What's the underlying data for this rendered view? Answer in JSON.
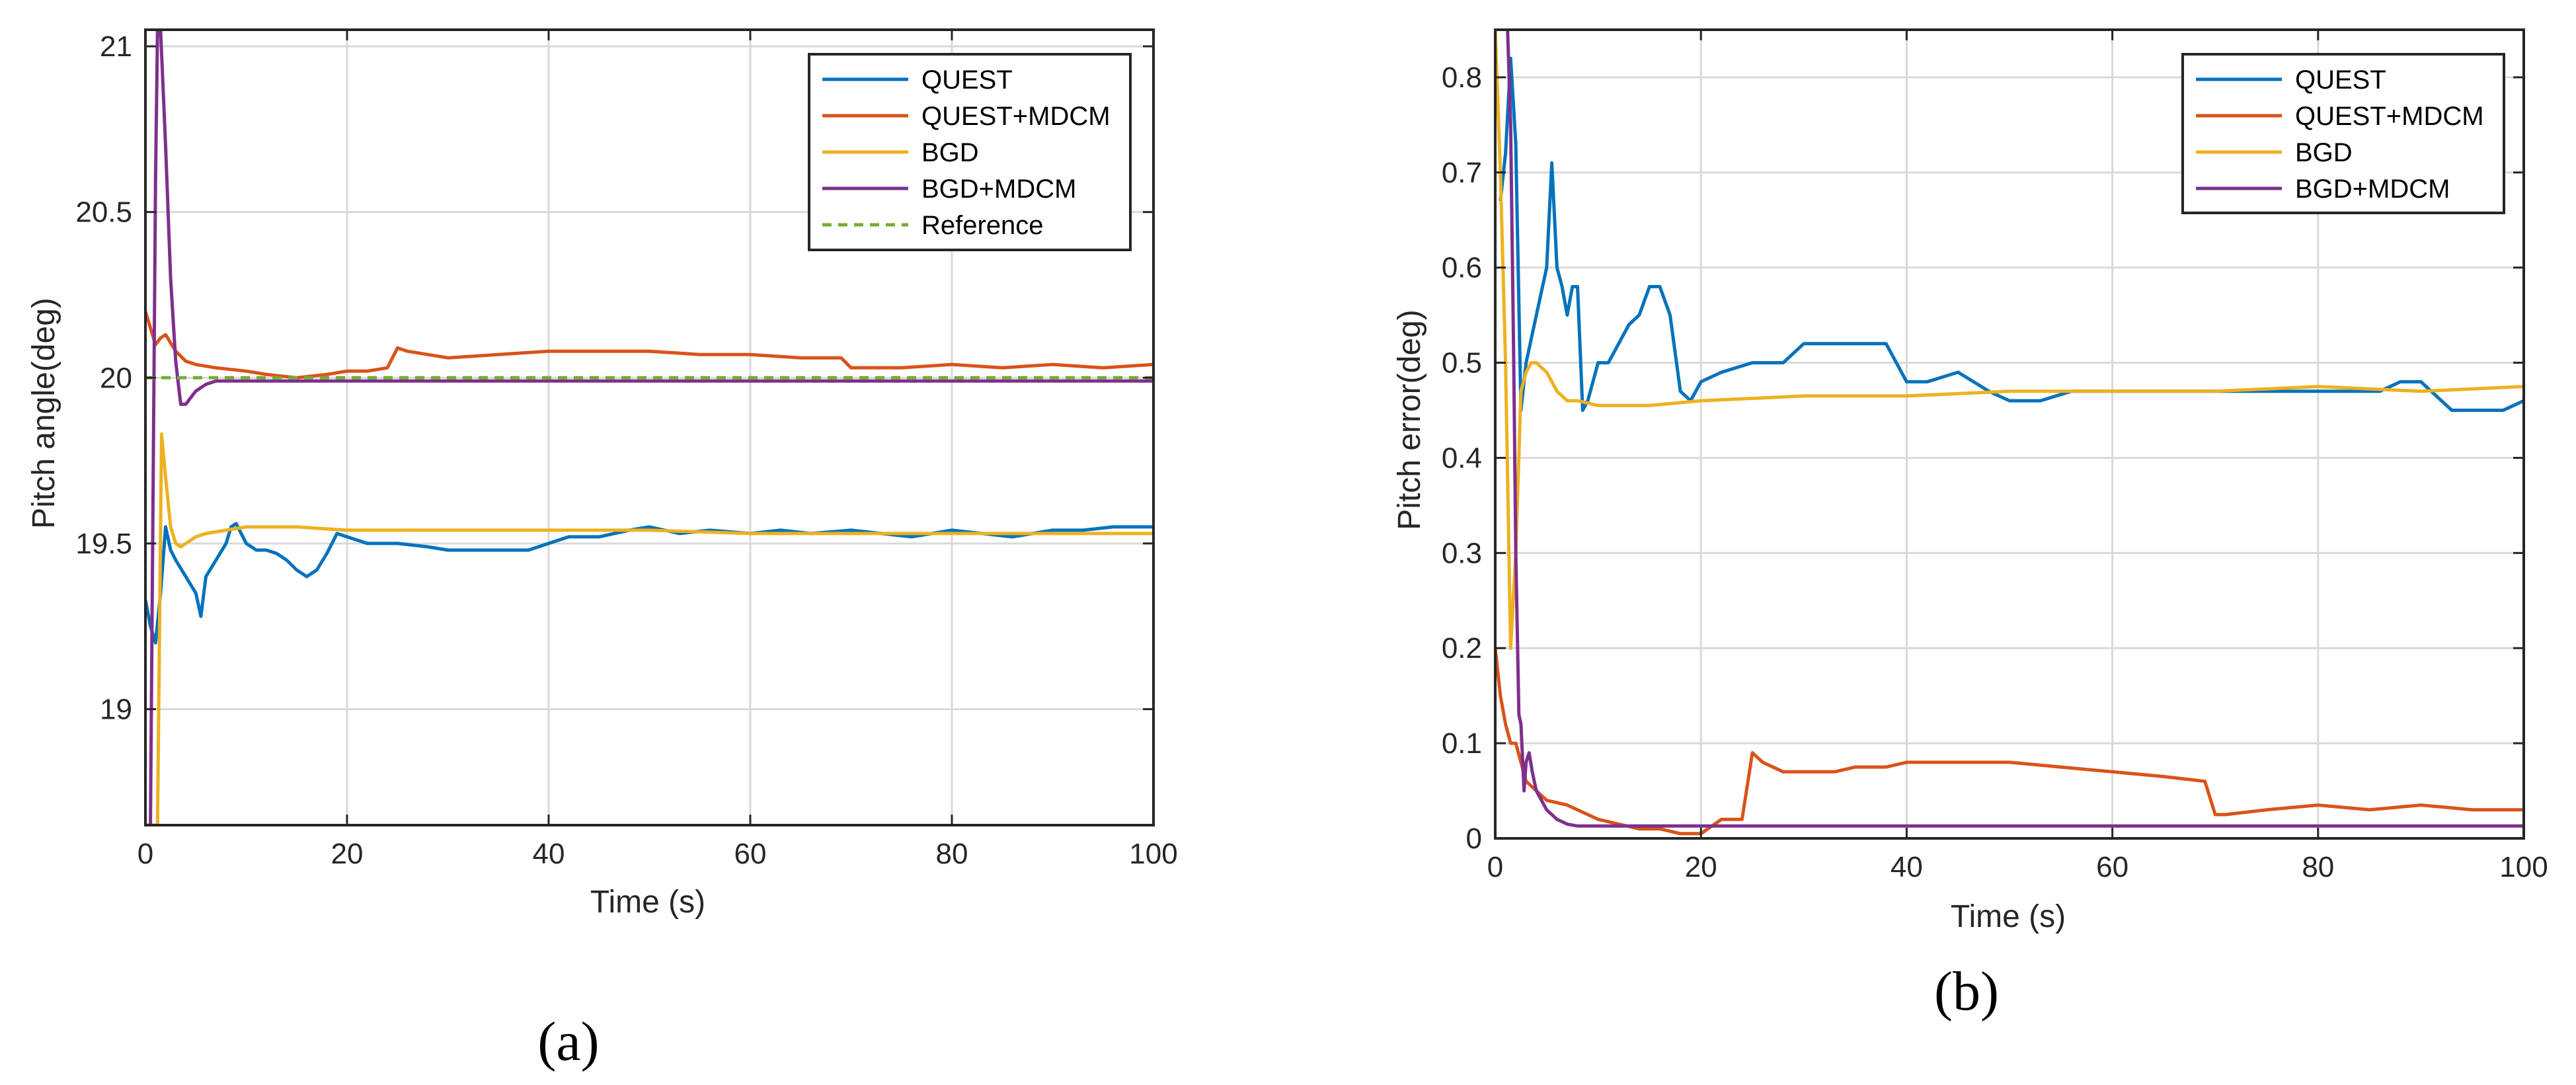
{
  "chart_data": [
    {
      "type": "line",
      "panel_label": "(a)",
      "xlabel": "Time (s)",
      "ylabel": "Pitch angle(deg)",
      "xlim": [
        0,
        100
      ],
      "ylim": [
        18.65,
        21.05
      ],
      "xticks": [
        0,
        20,
        40,
        60,
        80,
        100
      ],
      "xtick_labels": [
        "0",
        "20",
        "40",
        "60",
        "80",
        "100"
      ],
      "yticks": [
        19,
        19.5,
        20,
        20.5,
        21
      ],
      "ytick_labels": [
        "19",
        "19.5",
        "20",
        "20.5",
        "21"
      ],
      "grid": true,
      "legend_position": "top-right",
      "series": [
        {
          "name": "QUEST",
          "color": "#0072BD",
          "dash": "solid",
          "x": [
            0,
            0.5,
            1,
            1.5,
            2,
            2.5,
            3,
            4,
            5,
            5.5,
            6,
            7,
            8,
            8.5,
            9,
            10,
            11,
            12,
            13,
            14,
            15,
            16,
            17,
            18,
            19,
            20,
            22,
            25,
            28,
            30,
            33,
            36,
            38,
            40,
            42,
            45,
            48,
            50,
            53,
            56,
            60,
            63,
            66,
            70,
            73,
            76,
            80,
            83,
            86,
            88,
            90,
            93,
            96,
            98,
            100
          ],
          "y": [
            19.33,
            19.25,
            19.2,
            19.35,
            19.55,
            19.48,
            19.45,
            19.4,
            19.35,
            19.28,
            19.4,
            19.45,
            19.5,
            19.55,
            19.56,
            19.5,
            19.48,
            19.48,
            19.47,
            19.45,
            19.42,
            19.4,
            19.42,
            19.47,
            19.53,
            19.52,
            19.5,
            19.5,
            19.49,
            19.48,
            19.48,
            19.48,
            19.48,
            19.5,
            19.52,
            19.52,
            19.54,
            19.55,
            19.53,
            19.54,
            19.53,
            19.54,
            19.53,
            19.54,
            19.53,
            19.52,
            19.54,
            19.53,
            19.52,
            19.53,
            19.54,
            19.54,
            19.55,
            19.55,
            19.55
          ]
        },
        {
          "name": "QUEST+MDCM",
          "color": "#D95319",
          "dash": "solid",
          "x": [
            0,
            0.5,
            1,
            1.5,
            2,
            3,
            4,
            5,
            7,
            10,
            12,
            15,
            18,
            20,
            22,
            24,
            25,
            26,
            28,
            30,
            35,
            40,
            45,
            50,
            55,
            60,
            65,
            69,
            70,
            71,
            75,
            80,
            85,
            90,
            95,
            100
          ],
          "y": [
            20.2,
            20.15,
            20.1,
            20.12,
            20.13,
            20.08,
            20.05,
            20.04,
            20.03,
            20.02,
            20.01,
            20.0,
            20.01,
            20.02,
            20.02,
            20.03,
            20.09,
            20.08,
            20.07,
            20.06,
            20.07,
            20.08,
            20.08,
            20.08,
            20.07,
            20.07,
            20.06,
            20.06,
            20.03,
            20.03,
            20.03,
            20.04,
            20.03,
            20.04,
            20.03,
            20.04
          ]
        },
        {
          "name": "BGD",
          "color": "#EDB120",
          "dash": "solid",
          "x": [
            0,
            0.8,
            1.2,
            1.6,
            2,
            2.5,
            3,
            3.5,
            4,
            5,
            6,
            8,
            10,
            15,
            20,
            30,
            40,
            50,
            60,
            70,
            80,
            90,
            100
          ],
          "y": [
            18.65,
            18.65,
            18.65,
            19.83,
            19.7,
            19.55,
            19.5,
            19.49,
            19.5,
            19.52,
            19.53,
            19.54,
            19.55,
            19.55,
            19.54,
            19.54,
            19.54,
            19.54,
            19.53,
            19.53,
            19.53,
            19.53,
            19.53
          ]
        },
        {
          "name": "BGD+MDCM",
          "color": "#7E2F8E",
          "dash": "solid",
          "x": [
            0.5,
            1.0,
            1.2,
            1.5,
            2,
            2.5,
            3,
            3.5,
            4,
            4.5,
            5,
            6,
            7,
            8,
            10,
            20,
            40,
            60,
            80,
            100
          ],
          "y": [
            18.65,
            20.6,
            21.05,
            21.05,
            20.7,
            20.3,
            20.05,
            19.92,
            19.92,
            19.94,
            19.96,
            19.98,
            19.99,
            19.99,
            19.99,
            19.99,
            19.99,
            19.99,
            19.99,
            19.99
          ]
        },
        {
          "name": "Reference",
          "color": "#77AC30",
          "dash": "dashed",
          "x": [
            0,
            100
          ],
          "y": [
            20.0,
            20.0
          ]
        }
      ]
    },
    {
      "type": "line",
      "panel_label": "(b)",
      "xlabel": "Time (s)",
      "ylabel": "Pitch error(deg)",
      "xlim": [
        0,
        100
      ],
      "ylim": [
        0,
        0.85
      ],
      "xticks": [
        0,
        20,
        40,
        60,
        80,
        100
      ],
      "xtick_labels": [
        "0",
        "20",
        "40",
        "60",
        "80",
        "100"
      ],
      "yticks": [
        0,
        0.1,
        0.2,
        0.3,
        0.4,
        0.5,
        0.6,
        0.7,
        0.8
      ],
      "ytick_labels": [
        "0",
        "0.1",
        "0.2",
        "0.3",
        "0.4",
        "0.5",
        "0.6",
        "0.7",
        "0.8"
      ],
      "grid": true,
      "legend_position": "top-right",
      "series": [
        {
          "name": "QUEST",
          "color": "#0072BD",
          "dash": "solid",
          "x": [
            0.5,
            1,
            1.5,
            2,
            2.5,
            3,
            4,
            5,
            5.5,
            6,
            6.5,
            7,
            7.5,
            8,
            8.5,
            9,
            10,
            11,
            12,
            13,
            14,
            15,
            16,
            17,
            18,
            19,
            20,
            22,
            25,
            28,
            30,
            33,
            35,
            37,
            38,
            40,
            42,
            45,
            48,
            50,
            53,
            56,
            60,
            63,
            66,
            70,
            73,
            76,
            80,
            83,
            86,
            88,
            90,
            93,
            96,
            98,
            100
          ],
          "y": [
            0.67,
            0.72,
            0.82,
            0.73,
            0.45,
            0.5,
            0.55,
            0.6,
            0.71,
            0.6,
            0.58,
            0.55,
            0.58,
            0.58,
            0.45,
            0.46,
            0.5,
            0.5,
            0.52,
            0.54,
            0.55,
            0.58,
            0.58,
            0.55,
            0.47,
            0.46,
            0.48,
            0.49,
            0.5,
            0.5,
            0.52,
            0.52,
            0.52,
            0.52,
            0.52,
            0.48,
            0.48,
            0.49,
            0.47,
            0.46,
            0.46,
            0.47,
            0.47,
            0.47,
            0.47,
            0.47,
            0.47,
            0.47,
            0.47,
            0.47,
            0.47,
            0.48,
            0.48,
            0.45,
            0.45,
            0.45,
            0.46
          ]
        },
        {
          "name": "QUEST+MDCM",
          "color": "#D95319",
          "dash": "solid",
          "x": [
            0,
            0.5,
            1,
            1.5,
            2,
            2.5,
            3,
            4,
            5,
            7,
            10,
            12,
            14,
            16,
            18,
            20,
            22,
            24,
            25,
            26,
            28,
            30,
            33,
            35,
            38,
            40,
            45,
            50,
            55,
            60,
            65,
            69,
            70,
            71,
            75,
            80,
            85,
            90,
            95,
            100
          ],
          "y": [
            0.2,
            0.15,
            0.12,
            0.1,
            0.1,
            0.08,
            0.06,
            0.05,
            0.04,
            0.035,
            0.02,
            0.015,
            0.01,
            0.01,
            0.005,
            0.005,
            0.02,
            0.02,
            0.09,
            0.08,
            0.07,
            0.07,
            0.07,
            0.075,
            0.075,
            0.08,
            0.08,
            0.08,
            0.075,
            0.07,
            0.065,
            0.06,
            0.025,
            0.025,
            0.03,
            0.035,
            0.03,
            0.035,
            0.03,
            0.03
          ]
        },
        {
          "name": "BGD",
          "color": "#EDB120",
          "dash": "solid",
          "x": [
            0,
            0.5,
            1,
            1.5,
            2,
            2.5,
            3,
            3.5,
            4,
            5,
            6,
            7,
            8,
            10,
            15,
            20,
            30,
            40,
            50,
            60,
            70,
            80,
            90,
            100
          ],
          "y": [
            0.85,
            0.7,
            0.5,
            0.2,
            0.3,
            0.47,
            0.49,
            0.5,
            0.5,
            0.49,
            0.47,
            0.46,
            0.46,
            0.455,
            0.455,
            0.46,
            0.465,
            0.465,
            0.47,
            0.47,
            0.47,
            0.475,
            0.47,
            0.475
          ]
        },
        {
          "name": "BGD+MDCM",
          "color": "#7E2F8E",
          "dash": "solid",
          "x": [
            1.2,
            1.5,
            1.8,
            2,
            2.3,
            2.5,
            2.8,
            3,
            3.3,
            3.6,
            4,
            5,
            6,
            7,
            8,
            10,
            20,
            40,
            60,
            80,
            100
          ],
          "y": [
            0.85,
            0.75,
            0.5,
            0.3,
            0.13,
            0.12,
            0.05,
            0.08,
            0.09,
            0.07,
            0.05,
            0.03,
            0.02,
            0.015,
            0.013,
            0.013,
            0.013,
            0.013,
            0.013,
            0.013,
            0.013
          ]
        }
      ]
    }
  ]
}
